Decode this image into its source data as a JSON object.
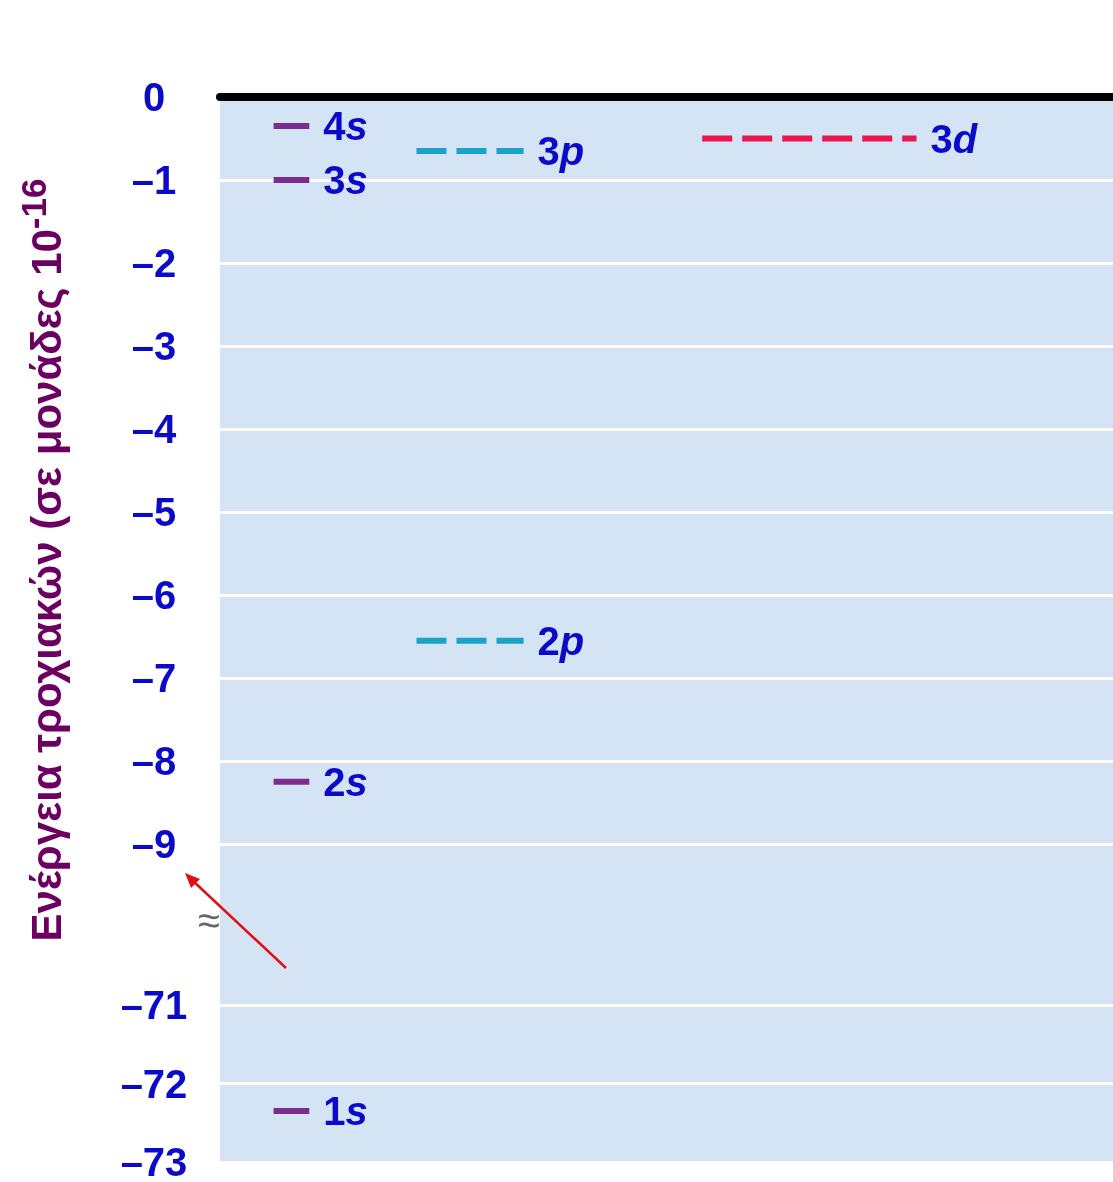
{
  "chart_data": [
    {
      "type": "line",
      "ylabel": "Ενέργεια τροχιακών (σε μονάδες 10$^{-16}$",
      "annotations": [
        "≈"
      ],
      "categories": [
        null,
        null,
        null,
        null,
        null,
        null,
        null,
        null,
        null,
        null,
        null,
        null,
        null,
        null,
        null,
        null,
        null,
        null,
        null,
        null,
        null,
        null,
        null,
        null,
        null
      ],
      "series": [
        {
          "name": "4s",
          "color": "#7b2d8e",
          "line_style": "solid",
          "values": [
            null,
            -0.35,
            -0.35,
            null,
            null,
            null,
            null,
            null,
            null,
            null,
            null,
            null,
            null,
            null,
            null,
            null,
            null,
            null,
            null,
            null,
            null,
            null,
            null,
            null,
            null
          ]
        },
        {
          "name": "3s",
          "color": "#7b2d8e",
          "line_style": "solid",
          "values": [
            null,
            -1.0,
            -1.0,
            null,
            null,
            null,
            null,
            null,
            null,
            null,
            null,
            null,
            null,
            null,
            null,
            null,
            null,
            null,
            null,
            null,
            null,
            null,
            null,
            null,
            null
          ]
        },
        {
          "name": "2s",
          "color": "#7b2d8e",
          "line_style": "solid",
          "values": [
            null,
            -8.25,
            -8.25,
            null,
            null,
            null,
            null,
            null,
            null,
            null,
            null,
            null,
            null,
            null,
            null,
            null,
            null,
            null,
            null,
            null,
            null,
            null,
            null,
            null,
            null
          ]
        },
        {
          "name": "3p",
          "color": "#1aa3c8",
          "line_style": "dashed",
          "values": [
            null,
            null,
            null,
            null,
            null,
            -0.65,
            -0.65,
            -0.65,
            -0.65,
            null,
            null,
            null,
            null,
            null,
            null,
            null,
            null,
            null,
            null,
            null,
            null,
            null,
            null,
            null,
            null
          ]
        },
        {
          "name": "2p",
          "color": "#1aa3c8",
          "line_style": "dashed",
          "values": [
            null,
            null,
            null,
            null,
            null,
            -6.55,
            -6.55,
            -6.55,
            -6.55,
            null,
            null,
            null,
            null,
            null,
            null,
            null,
            null,
            null,
            null,
            null,
            null,
            null,
            null,
            null,
            null
          ]
        },
        {
          "name": "3d",
          "color": "#e8164c",
          "line_style": "dashed",
          "values": [
            null,
            null,
            null,
            null,
            null,
            null,
            null,
            null,
            null,
            null,
            null,
            null,
            null,
            -0.5,
            -0.5,
            -0.5,
            -0.5,
            -0.5,
            -0.5,
            -0.5,
            null,
            null,
            null,
            null,
            null
          ]
        }
      ],
      "ylim": [
        -10,
        0
      ],
      "yticks": [
        0,
        {
          "value": -1,
          "label": "–1"
        },
        {
          "value": -2,
          "label": "–2"
        },
        {
          "value": -3,
          "label": "–3"
        },
        {
          "value": -4,
          "label": "–4"
        },
        {
          "value": -5,
          "label": "–5"
        },
        {
          "value": -6,
          "label": "–6"
        },
        {
          "value": -7,
          "label": "–7"
        },
        {
          "value": -8,
          "label": "–8"
        },
        {
          "value": -9,
          "label": "–9"
        }
      ],
      "grid": "y",
      "marker": "none",
      "tick_labels": "y"
    },
    {
      "type": "line",
      "categories": [
        null,
        null,
        null,
        null,
        null,
        null,
        null,
        null,
        null,
        null,
        null,
        null,
        null,
        null,
        null,
        null,
        null,
        null,
        null,
        null,
        null,
        null,
        null,
        null,
        null
      ],
      "series": [
        {
          "name": "1s",
          "color": "#7b2d8e",
          "line_style": "solid",
          "values": [
            null,
            -72.35,
            -72.35,
            null,
            null,
            null,
            null,
            null,
            null,
            null,
            null,
            null,
            null,
            null,
            null,
            null,
            null,
            null,
            null,
            null,
            null,
            null,
            null,
            null,
            null
          ]
        }
      ],
      "ylim": [
        -73,
        -70
      ],
      "yticks": [
        {
          "value": -71,
          "label": "–71"
        },
        {
          "value": -72,
          "label": "–72"
        },
        {
          "value": -73,
          "label": "–73"
        }
      ],
      "grid": "y",
      "marker": "none",
      "tick_labels": "y"
    }
  ]
}
